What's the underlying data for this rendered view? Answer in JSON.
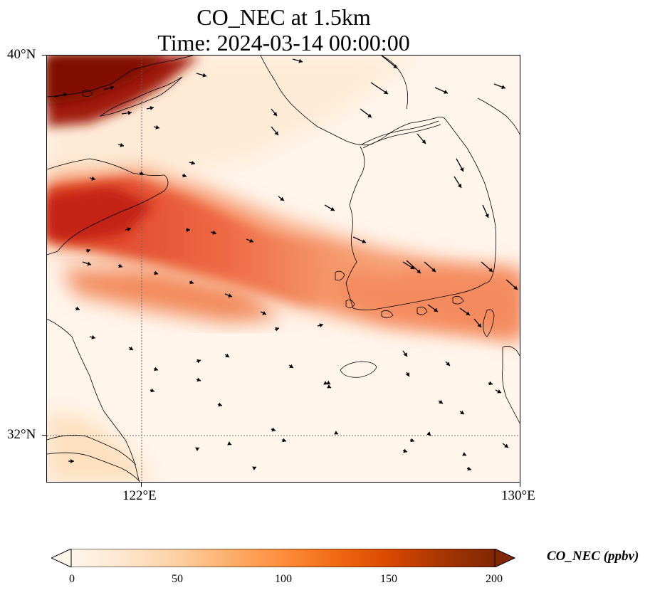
{
  "title_line1": "CO_NEC at 1.5km",
  "title_line2": "Time: 2024-03-14 00:00:00",
  "lat_ticks": [
    "40°N",
    "32°N"
  ],
  "lon_ticks": [
    "122°E",
    "130°E"
  ],
  "colorbar": {
    "label": "CO_NEC (ppbv)",
    "ticks": [
      "0",
      "50",
      "100",
      "150",
      "200"
    ],
    "min": 0,
    "max": 200,
    "extend": "both",
    "colormap": [
      "#fff5eb",
      "#fee6ce",
      "#fdd0a2",
      "#fdae6b",
      "#fd8d3c",
      "#f16913",
      "#d94801",
      "#a63603",
      "#7f2704"
    ]
  },
  "map": {
    "extent": {
      "lon_min": 120,
      "lon_max": 130,
      "lat_min": 31,
      "lat_max": 40
    },
    "gridlines": {
      "lon": [
        122
      ],
      "lat": [
        32
      ]
    },
    "features": [
      "coastlines",
      "wind-vectors",
      "co-concentration-field"
    ]
  }
}
